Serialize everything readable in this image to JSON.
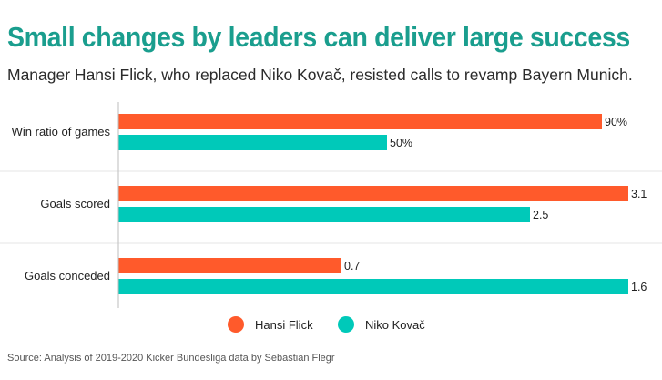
{
  "title": "Small changes by leaders can deliver large success",
  "subtitle": "Manager Hansi Flick, who replaced Niko Kovač, resisted calls to revamp Bayern Munich.",
  "source": "Source: Analysis of 2019-2020 Kicker Bundesliga data by Sebastian Flegr",
  "colors": {
    "title": "#1a9e8e",
    "hansi_flick": "#ff5a2b",
    "niko_kovac": "#00c9b9"
  },
  "chart_data": {
    "type": "bar",
    "orientation": "horizontal",
    "categories": [
      "Win ratio of games",
      "Goals scored",
      "Goals conceded"
    ],
    "series": [
      {
        "name": "Hansi Flick",
        "color": "#ff5a2b",
        "values": [
          0.9,
          3.1,
          0.7
        ],
        "labels": [
          "90%",
          "3.1",
          "0.7"
        ]
      },
      {
        "name": "Niko Kovač",
        "color": "#00c9b9",
        "values": [
          0.5,
          2.5,
          1.6
        ],
        "labels": [
          "50%",
          "2.5",
          "1.6"
        ]
      }
    ],
    "category_max": [
      0.95,
      3.1,
      1.6
    ],
    "legend": "bottom-center",
    "grid": false
  }
}
